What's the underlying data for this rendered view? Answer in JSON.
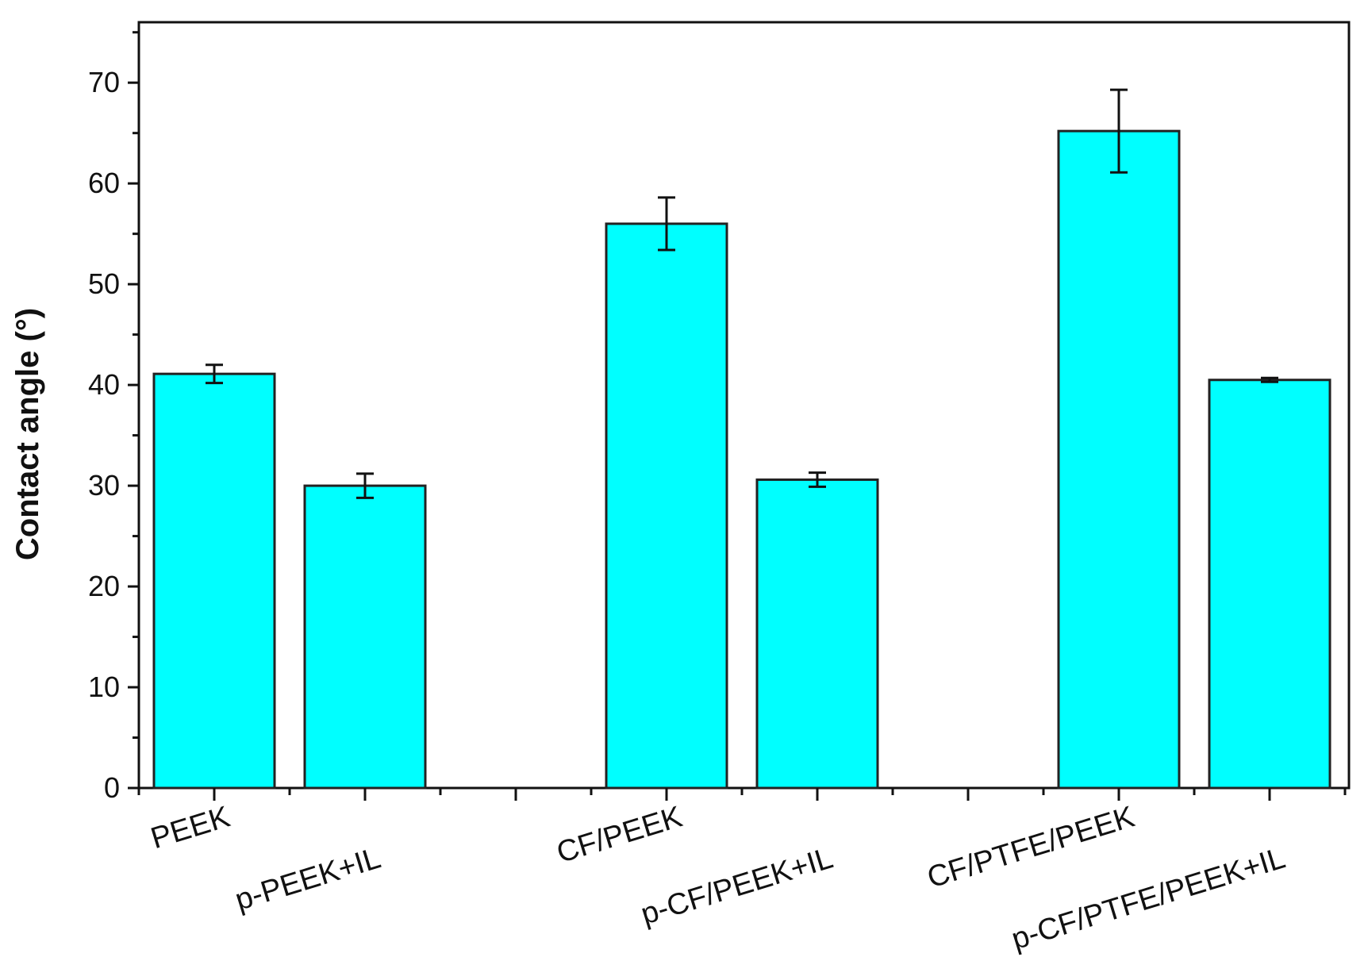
{
  "chart_data": {
    "type": "bar",
    "title": "",
    "xlabel": "",
    "ylabel": "Contact angle (°)",
    "ylim": [
      0,
      76
    ],
    "yticks": [
      0,
      10,
      20,
      30,
      40,
      50,
      60,
      70
    ],
    "grid": false,
    "legend": "none",
    "bar_color": "#00FFFF",
    "bar_edge_color": "#222222",
    "categories": [
      "PEEK",
      "p-PEEK+IL",
      "CF/PEEK",
      "p-CF/PEEK+IL",
      "CF/PTFE/PEEK",
      "p-CF/PTFE/PEEK+IL"
    ],
    "values": [
      41.1,
      30.0,
      56.0,
      30.6,
      65.2,
      40.5
    ],
    "errors": [
      0.9,
      1.2,
      2.6,
      0.7,
      4.1,
      0.2
    ]
  }
}
